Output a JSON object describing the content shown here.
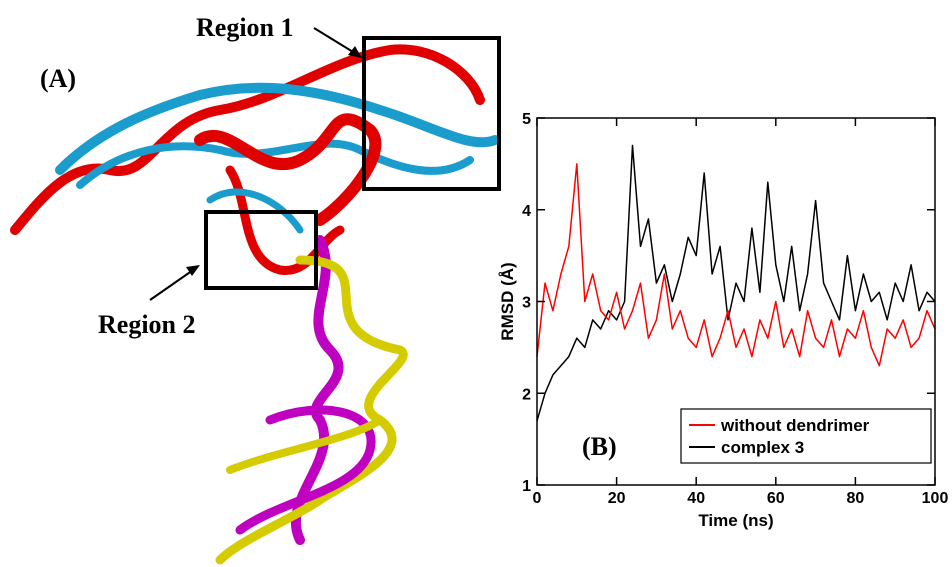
{
  "figure": {
    "panel_a_label": "(A)",
    "region_1": "Region 1",
    "region_2": "Region 2"
  },
  "chart_data": {
    "type": "line",
    "panel_label": "(B)",
    "x_label": "Time (ns)",
    "y_label": "RMSD (Å)",
    "x": [
      0,
      2,
      4,
      6,
      8,
      10,
      12,
      14,
      16,
      18,
      20,
      22,
      24,
      26,
      28,
      30,
      32,
      34,
      36,
      38,
      40,
      42,
      44,
      46,
      48,
      50,
      52,
      54,
      56,
      58,
      60,
      62,
      64,
      66,
      68,
      70,
      72,
      74,
      76,
      78,
      80,
      82,
      84,
      86,
      88,
      90,
      92,
      94,
      96,
      98,
      100
    ],
    "series": [
      {
        "name": "without dendrimer",
        "color": "#ff0000",
        "values": [
          2.4,
          3.2,
          2.9,
          3.3,
          3.6,
          4.5,
          3.0,
          3.3,
          2.9,
          2.8,
          3.1,
          2.7,
          2.9,
          3.2,
          2.6,
          2.8,
          3.3,
          2.7,
          2.9,
          2.6,
          2.5,
          2.8,
          2.4,
          2.6,
          2.9,
          2.5,
          2.7,
          2.4,
          2.8,
          2.6,
          3.0,
          2.5,
          2.7,
          2.4,
          2.9,
          2.6,
          2.5,
          2.8,
          2.4,
          2.7,
          2.6,
          2.9,
          2.5,
          2.3,
          2.7,
          2.6,
          2.8,
          2.5,
          2.6,
          2.9,
          2.7
        ]
      },
      {
        "name": "complex 3",
        "color": "#000000",
        "values": [
          1.7,
          2.0,
          2.2,
          2.3,
          2.4,
          2.6,
          2.5,
          2.8,
          2.7,
          2.9,
          2.8,
          3.0,
          4.7,
          3.6,
          3.9,
          3.2,
          3.4,
          3.0,
          3.3,
          3.7,
          3.5,
          4.4,
          3.3,
          3.6,
          2.8,
          3.2,
          3.0,
          3.8,
          3.1,
          4.3,
          3.4,
          3.0,
          3.6,
          2.9,
          3.3,
          4.1,
          3.2,
          3.0,
          2.8,
          3.5,
          2.9,
          3.3,
          3.0,
          3.1,
          2.8,
          3.2,
          3.0,
          3.4,
          2.9,
          3.1,
          3.0
        ]
      }
    ],
    "xlim": [
      0,
      100
    ],
    "xticks": [
      0,
      20,
      40,
      60,
      80,
      100
    ],
    "ylim": [
      1,
      5
    ],
    "yticks": [
      1,
      2,
      3,
      4,
      5
    ],
    "grid": false,
    "legend": "lower right"
  }
}
